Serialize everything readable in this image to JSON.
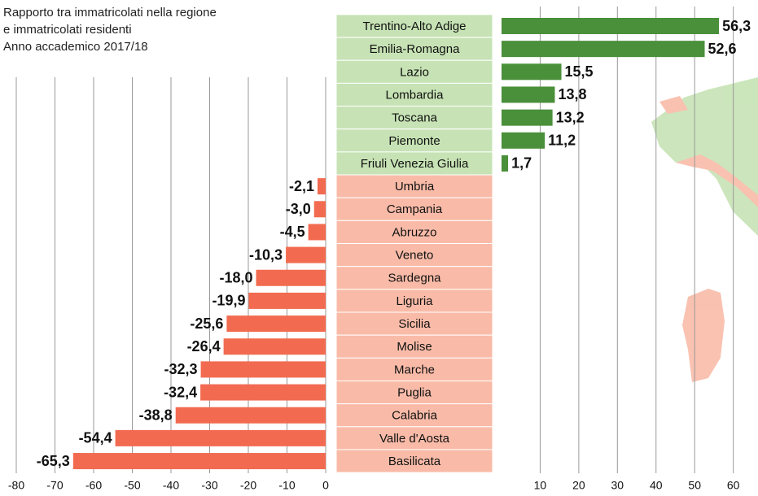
{
  "chart_data": {
    "type": "diverging-bar",
    "title_lines": [
      "Rapporto tra immatricolati nella regione",
      "e immatricolati residenti",
      "Anno accademico 2017/18"
    ],
    "categories": [
      "Trentino-Alto Adige",
      "Emilia-Romagna",
      "Lazio",
      "Lombardia",
      "Toscana",
      "Piemonte",
      "Friuli Venezia Giulia",
      "Umbria",
      "Campania",
      "Abruzzo",
      "Veneto",
      "Sardegna",
      "Liguria",
      "Sicilia",
      "Molise",
      "Marche",
      "Puglia",
      "Calabria",
      "Valle d'Aosta",
      "Basilicata"
    ],
    "values": [
      56.3,
      52.6,
      15.5,
      13.8,
      13.2,
      11.2,
      1.7,
      -2.1,
      -3.0,
      -4.5,
      -10.3,
      -18.0,
      -19.9,
      -25.6,
      -26.4,
      -32.3,
      -32.4,
      -38.8,
      -54.4,
      -65.3
    ],
    "value_labels": [
      "56,3",
      "52,6",
      "15,5",
      "13,8",
      "13,2",
      "11,2",
      "1,7",
      "-2,1",
      "-3,0",
      "-4,5",
      "-10,3",
      "-18,0",
      "-19,9",
      "-25,6",
      "-26,4",
      "-32,3",
      "-32,4",
      "-38,8",
      "-54,4",
      "-65,3"
    ],
    "positive_color": "#4a8f3a",
    "negative_color": "#f26b50",
    "positive_band_color": "#c7e3b5",
    "negative_band_color": "#f9bba8",
    "xlim": [
      -80,
      0
    ],
    "xticks": [
      -80,
      -70,
      -60,
      -50,
      -40,
      -30,
      -20,
      -10,
      0
    ],
    "x2lim": [
      0,
      66.4
    ],
    "x2ticks": [
      10,
      20,
      30,
      40,
      50,
      60
    ],
    "grid": true
  }
}
